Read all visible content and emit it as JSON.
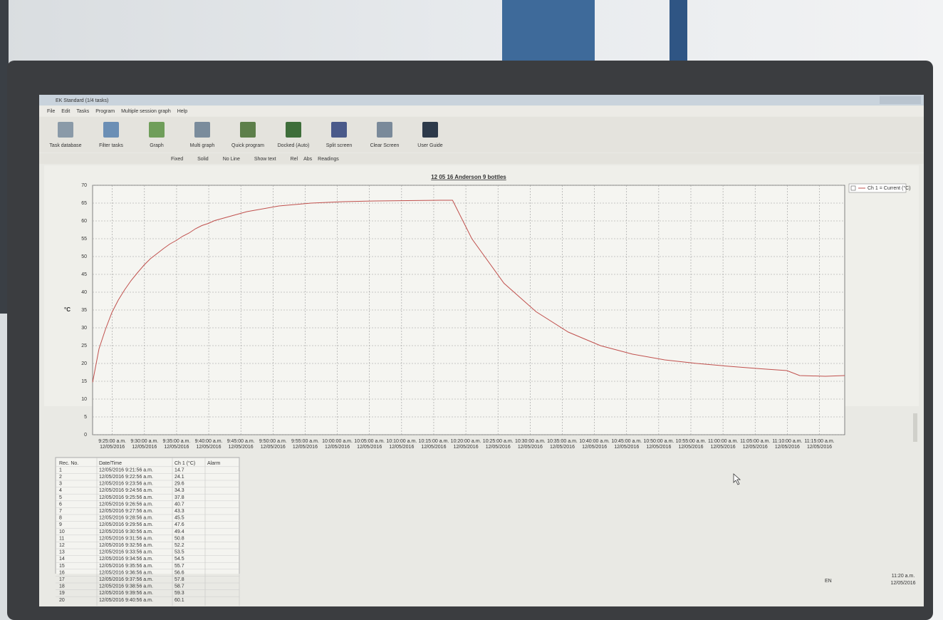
{
  "window": {
    "title": "EK Standard (1/4 tasks)"
  },
  "menu": [
    "File",
    "Edit",
    "Tasks",
    "Program",
    "Multiple session graph",
    "Help"
  ],
  "toolbar": [
    "Task database",
    "Filter tasks",
    "Graph",
    "Multi graph",
    "Quick program",
    "Docked (Auto)",
    "Split screen",
    "Clear Screen",
    "User Guide"
  ],
  "toolbar2": [
    "Fixed",
    "Solid",
    "No Line",
    "Show text",
    "Rel",
    "Abs",
    "Readings"
  ],
  "chart_data": {
    "type": "line",
    "title": "12 05 16 Anderson 9 bottles",
    "ylabel": "°C",
    "xlim": [
      "9:21:56 a.m.",
      "11:18:56 a.m."
    ],
    "xticks": [
      "9:25:00 a.m.",
      "9:30:00 a.m.",
      "9:35:00 a.m.",
      "9:40:00 a.m.",
      "9:45:00 a.m.",
      "9:50:00 a.m.",
      "9:55:00 a.m.",
      "10:00:00 a.m.",
      "10:05:00 a.m.",
      "10:10:00 a.m.",
      "10:15:00 a.m.",
      "10:20:00 a.m.",
      "10:25:00 a.m.",
      "10:30:00 a.m.",
      "10:35:00 a.m.",
      "10:40:00 a.m.",
      "10:45:00 a.m.",
      "10:50:00 a.m.",
      "10:55:00 a.m.",
      "11:00:00 a.m.",
      "11:05:00 a.m.",
      "11:10:00 a.m.",
      "11:15:00 a.m."
    ],
    "xtick_date": "12/05/2016",
    "ylim": [
      0,
      70
    ],
    "yticks": [
      0,
      5,
      10,
      15,
      20,
      25,
      30,
      35,
      40,
      45,
      50,
      55,
      60,
      65,
      70
    ],
    "grid": true,
    "series": [
      {
        "name": "Ch 1 = Current (°C)",
        "color": "#c0504d",
        "x": [
          "9:21:56 a.m.",
          "9:22:56 a.m.",
          "9:23:56 a.m.",
          "9:24:56 a.m.",
          "9:25:56 a.m.",
          "9:26:56 a.m.",
          "9:27:56 a.m.",
          "9:28:56 a.m.",
          "9:29:56 a.m.",
          "9:30:56 a.m.",
          "9:31:56 a.m.",
          "9:32:56 a.m.",
          "9:33:56 a.m.",
          "9:34:56 a.m.",
          "9:35:56 a.m.",
          "9:36:56 a.m.",
          "9:37:56 a.m.",
          "9:38:56 a.m.",
          "9:39:56 a.m.",
          "9:40:56 a.m.",
          "9:45:56 a.m.",
          "9:50:56 a.m.",
          "9:55:56 a.m.",
          "10:00:56 a.m.",
          "10:05:56 a.m.",
          "10:10:56 a.m.",
          "10:15:56 a.m.",
          "10:17:56 a.m.",
          "10:20:56 a.m.",
          "10:25:56 a.m.",
          "10:30:56 a.m.",
          "10:35:56 a.m.",
          "10:40:56 a.m.",
          "10:45:56 a.m.",
          "10:50:56 a.m.",
          "10:55:56 a.m.",
          "11:00:56 a.m.",
          "11:05:56 a.m.",
          "11:09:56 a.m.",
          "11:11:56 a.m.",
          "11:15:56 a.m.",
          "11:18:56 a.m."
        ],
        "values": [
          14.7,
          24.1,
          29.6,
          34.3,
          37.8,
          40.7,
          43.3,
          45.5,
          47.6,
          49.4,
          50.8,
          52.2,
          53.5,
          54.5,
          55.7,
          56.6,
          57.8,
          58.7,
          59.3,
          60.1,
          62.6,
          64.2,
          65.0,
          65.4,
          65.6,
          65.7,
          65.8,
          65.8,
          55.0,
          42.5,
          34.5,
          28.8,
          25.0,
          22.6,
          21.0,
          20.0,
          19.2,
          18.5,
          18.0,
          16.6,
          16.4,
          16.6
        ]
      }
    ]
  },
  "table": {
    "headers": [
      "Rec. No.",
      "Date/Time",
      "Ch 1 (°C)",
      "Alarm"
    ],
    "rows": [
      [
        1,
        "12/05/2016 9:21:56 a.m.",
        14.7
      ],
      [
        2,
        "12/05/2016 9:22:56 a.m.",
        24.1
      ],
      [
        3,
        "12/05/2016 9:23:56 a.m.",
        29.6
      ],
      [
        4,
        "12/05/2016 9:24:56 a.m.",
        34.3
      ],
      [
        5,
        "12/05/2016 9:25:56 a.m.",
        37.8
      ],
      [
        6,
        "12/05/2016 9:26:56 a.m.",
        40.7
      ],
      [
        7,
        "12/05/2016 9:27:56 a.m.",
        43.3
      ],
      [
        8,
        "12/05/2016 9:28:56 a.m.",
        45.5
      ],
      [
        9,
        "12/05/2016 9:29:56 a.m.",
        47.6
      ],
      [
        10,
        "12/05/2016 9:30:56 a.m.",
        49.4
      ],
      [
        11,
        "12/05/2016 9:31:56 a.m.",
        50.8
      ],
      [
        12,
        "12/05/2016 9:32:56 a.m.",
        52.2
      ],
      [
        13,
        "12/05/2016 9:33:56 a.m.",
        53.5
      ],
      [
        14,
        "12/05/2016 9:34:56 a.m.",
        54.5
      ],
      [
        15,
        "12/05/2016 9:35:56 a.m.",
        55.7
      ],
      [
        16,
        "12/05/2016 9:36:56 a.m.",
        56.6
      ],
      [
        17,
        "12/05/2016 9:37:56 a.m.",
        57.8
      ],
      [
        18,
        "12/05/2016 9:38:56 a.m.",
        58.7
      ],
      [
        19,
        "12/05/2016 9:39:56 a.m.",
        59.3
      ],
      [
        20,
        "12/05/2016 9:40:56 a.m.",
        60.1
      ]
    ]
  },
  "taskbar": {
    "lang": "EN",
    "time": "11:20 a.m.",
    "date": "12/05/2016"
  }
}
